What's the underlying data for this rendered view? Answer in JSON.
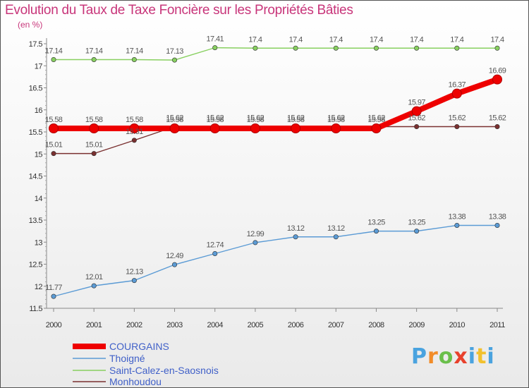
{
  "chart_data": {
    "type": "line",
    "title": "Evolution du Taux de Taxe Foncière sur les Propriétés Bâties",
    "unit_label": "(en %)",
    "x": [
      "2000",
      "2001",
      "2002",
      "2003",
      "2004",
      "2005",
      "2006",
      "2007",
      "2008",
      "2009",
      "2010",
      "2011"
    ],
    "ylim": [
      11.5,
      17.5
    ],
    "yticks": [
      "11.5",
      "12",
      "12.5",
      "13",
      "13.5",
      "14",
      "14.5",
      "15",
      "15.5",
      "16",
      "16.5",
      "17",
      "17.5"
    ],
    "series": [
      {
        "name": "COURGAINS",
        "color": "#ee0000",
        "values": [
          15.58,
          15.58,
          15.58,
          15.58,
          15.58,
          15.58,
          15.58,
          15.58,
          15.58,
          15.97,
          16.37,
          16.69
        ],
        "labels": [
          "15.58",
          "15.58",
          "15.58",
          "15.58",
          "15.58",
          "15.58",
          "15.58",
          "15.58",
          "15.58",
          "15.97",
          "16.37",
          "16.69"
        ]
      },
      {
        "name": "Thoigné",
        "color": "#5b9bd5",
        "values": [
          11.77,
          12.01,
          12.13,
          12.49,
          12.74,
          12.99,
          13.12,
          13.12,
          13.25,
          13.25,
          13.38,
          13.38
        ],
        "labels": [
          "11.77",
          "12.01",
          "12.13",
          "12.49",
          "12.74",
          "12.99",
          "13.12",
          "13.12",
          "13.25",
          "13.25",
          "13.38",
          "13.38"
        ]
      },
      {
        "name": "Saint-Calez-en-Saosnois",
        "color": "#88d060",
        "values": [
          17.14,
          17.14,
          17.14,
          17.13,
          17.41,
          17.4,
          17.4,
          17.4,
          17.4,
          17.4,
          17.4,
          17.4
        ],
        "labels": [
          "17.14",
          "17.14",
          "17.14",
          "17.13",
          "17.41",
          "17.4",
          "17.4",
          "17.4",
          "17.4",
          "17.4",
          "17.4",
          "17.4"
        ]
      },
      {
        "name": "Monhoudou",
        "color": "#7a3030",
        "values": [
          15.01,
          15.01,
          15.31,
          15.62,
          15.62,
          15.62,
          15.62,
          15.62,
          15.62,
          15.62,
          15.62,
          15.62
        ],
        "labels": [
          "15.01",
          "15.01",
          "15.31",
          "15.62",
          "15.62",
          "15.62",
          "15.62",
          "15.62",
          "15.62",
          "15.62",
          "15.62",
          "15.62"
        ]
      }
    ]
  },
  "brand": {
    "logo_letters": [
      "P",
      "r",
      "o",
      "x",
      "i",
      "t",
      "i"
    ],
    "logo_colors": [
      "#4aa3df",
      "#f28c28",
      "#6abf4b",
      "#e8412c",
      "#4aa3df",
      "#f2c12e",
      "#4aa3df"
    ]
  }
}
